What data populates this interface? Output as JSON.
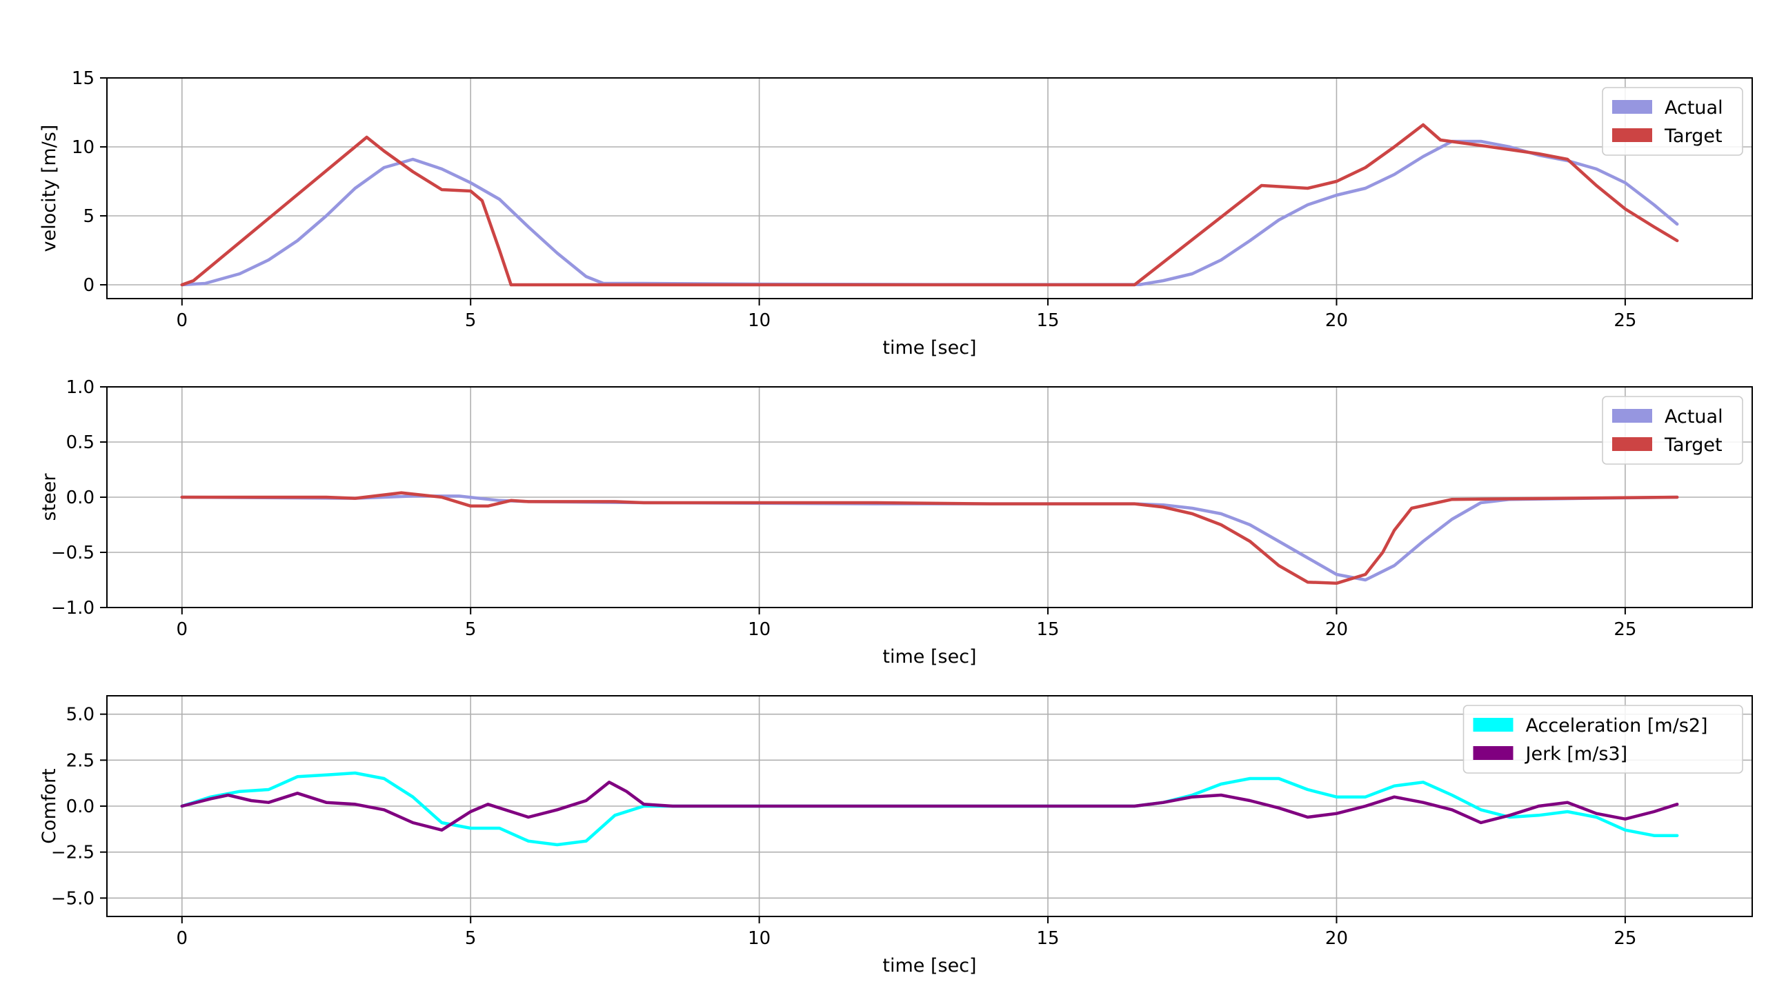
{
  "chart_data": [
    {
      "type": "line",
      "id": "velocity",
      "xlabel": "time [sec]",
      "ylabel": "velocity [m/s]",
      "xlim": [
        -1.3,
        27.2
      ],
      "ylim": [
        -1,
        15
      ],
      "xticks": [
        0,
        5,
        10,
        15,
        20,
        25
      ],
      "yticks": [
        0,
        5,
        10,
        15
      ],
      "xtick_labels": [
        "0",
        "5",
        "10",
        "15",
        "20",
        "25"
      ],
      "ytick_labels": [
        "0",
        "5",
        "10",
        "15"
      ],
      "grid": true,
      "legend_position": "top-right",
      "series": [
        {
          "name": "Actual",
          "color": "#9696e0",
          "points": [
            [
              0,
              0
            ],
            [
              0.4,
              0.1
            ],
            [
              1,
              0.8
            ],
            [
              1.5,
              1.8
            ],
            [
              2,
              3.2
            ],
            [
              2.5,
              5
            ],
            [
              3,
              7
            ],
            [
              3.5,
              8.5
            ],
            [
              4,
              9.1
            ],
            [
              4.5,
              8.4
            ],
            [
              5,
              7.4
            ],
            [
              5.5,
              6.2
            ],
            [
              6,
              4.2
            ],
            [
              6.5,
              2.3
            ],
            [
              7,
              0.6
            ],
            [
              7.3,
              0.1
            ],
            [
              8,
              0.1
            ],
            [
              10,
              0.05
            ],
            [
              13,
              0.02
            ],
            [
              16.6,
              0.02
            ],
            [
              17,
              0.3
            ],
            [
              17.5,
              0.8
            ],
            [
              18,
              1.8
            ],
            [
              18.5,
              3.2
            ],
            [
              19,
              4.7
            ],
            [
              19.5,
              5.8
            ],
            [
              20,
              6.5
            ],
            [
              20.5,
              7.0
            ],
            [
              21,
              8.0
            ],
            [
              21.5,
              9.3
            ],
            [
              22,
              10.4
            ],
            [
              22.5,
              10.4
            ],
            [
              23,
              10.0
            ],
            [
              23.5,
              9.4
            ],
            [
              24,
              9.0
            ],
            [
              24.5,
              8.4
            ],
            [
              25,
              7.4
            ],
            [
              25.5,
              5.8
            ],
            [
              25.9,
              4.4
            ]
          ]
        },
        {
          "name": "Target",
          "color": "#cc4444",
          "points": [
            [
              0,
              0
            ],
            [
              0.2,
              0.3
            ],
            [
              3.2,
              10.7
            ],
            [
              3.5,
              9.7
            ],
            [
              4,
              8.2
            ],
            [
              4.5,
              6.9
            ],
            [
              5,
              6.8
            ],
            [
              5.2,
              6.1
            ],
            [
              5.5,
              2.5
            ],
            [
              5.7,
              0
            ],
            [
              8,
              0
            ],
            [
              12,
              0
            ],
            [
              16.5,
              0
            ],
            [
              18.7,
              7.2
            ],
            [
              19.5,
              7.0
            ],
            [
              20,
              7.5
            ],
            [
              20.5,
              8.5
            ],
            [
              21,
              10.0
            ],
            [
              21.5,
              11.6
            ],
            [
              21.8,
              10.5
            ],
            [
              22.5,
              10.1
            ],
            [
              23.5,
              9.5
            ],
            [
              24,
              9.1
            ],
            [
              24.5,
              7.2
            ],
            [
              25,
              5.5
            ],
            [
              25.5,
              4.2
            ],
            [
              25.9,
              3.2
            ]
          ]
        }
      ]
    },
    {
      "type": "line",
      "id": "steer",
      "xlabel": "time [sec]",
      "ylabel": "steer",
      "xlim": [
        -1.3,
        27.2
      ],
      "ylim": [
        -1.0,
        1.0
      ],
      "xticks": [
        0,
        5,
        10,
        15,
        20,
        25
      ],
      "yticks": [
        -1.0,
        -0.5,
        0.0,
        0.5,
        1.0
      ],
      "xtick_labels": [
        "0",
        "5",
        "10",
        "15",
        "20",
        "25"
      ],
      "ytick_labels": [
        "−1.0",
        "−0.5",
        "0.0",
        "0.5",
        "1.0"
      ],
      "grid": true,
      "legend_position": "top-right",
      "series": [
        {
          "name": "Actual",
          "color": "#9696e0",
          "points": [
            [
              0,
              0
            ],
            [
              3,
              -0.01
            ],
            [
              4,
              0.01
            ],
            [
              4.8,
              0.01
            ],
            [
              5.5,
              -0.03
            ],
            [
              6,
              -0.04
            ],
            [
              8,
              -0.05
            ],
            [
              12,
              -0.06
            ],
            [
              16.5,
              -0.06
            ],
            [
              17,
              -0.07
            ],
            [
              17.5,
              -0.1
            ],
            [
              18,
              -0.15
            ],
            [
              18.5,
              -0.25
            ],
            [
              19,
              -0.4
            ],
            [
              19.5,
              -0.55
            ],
            [
              20,
              -0.7
            ],
            [
              20.5,
              -0.75
            ],
            [
              21,
              -0.62
            ],
            [
              21.5,
              -0.4
            ],
            [
              22,
              -0.2
            ],
            [
              22.5,
              -0.05
            ],
            [
              23,
              -0.02
            ],
            [
              25.9,
              0
            ]
          ]
        },
        {
          "name": "Target",
          "color": "#cc4444",
          "points": [
            [
              0,
              0
            ],
            [
              2.5,
              0
            ],
            [
              3,
              -0.01
            ],
            [
              3.8,
              0.04
            ],
            [
              4.5,
              0
            ],
            [
              5,
              -0.08
            ],
            [
              5.3,
              -0.08
            ],
            [
              5.7,
              -0.03
            ],
            [
              6,
              -0.04
            ],
            [
              7.5,
              -0.04
            ],
            [
              8,
              -0.05
            ],
            [
              12,
              -0.05
            ],
            [
              14,
              -0.06
            ],
            [
              16.5,
              -0.06
            ],
            [
              17,
              -0.09
            ],
            [
              17.5,
              -0.15
            ],
            [
              18,
              -0.25
            ],
            [
              18.5,
              -0.4
            ],
            [
              19,
              -0.62
            ],
            [
              19.5,
              -0.77
            ],
            [
              20,
              -0.78
            ],
            [
              20.5,
              -0.7
            ],
            [
              20.8,
              -0.5
            ],
            [
              21,
              -0.3
            ],
            [
              21.3,
              -0.1
            ],
            [
              22,
              -0.02
            ],
            [
              25.9,
              0
            ]
          ]
        }
      ]
    },
    {
      "type": "line",
      "id": "comfort",
      "xlabel": "time [sec]",
      "ylabel": "Comfort",
      "xlim": [
        -1.3,
        27.2
      ],
      "ylim": [
        -6,
        6
      ],
      "xticks": [
        0,
        5,
        10,
        15,
        20,
        25
      ],
      "yticks": [
        -5.0,
        -2.5,
        0.0,
        2.5,
        5.0
      ],
      "xtick_labels": [
        "0",
        "5",
        "10",
        "15",
        "20",
        "25"
      ],
      "ytick_labels": [
        "−5.0",
        "−2.5",
        "0.0",
        "2.5",
        "5.0"
      ],
      "grid": true,
      "legend_position": "top-right",
      "series": [
        {
          "name": "Acceleration [m/s2]",
          "color": "#00ffff",
          "points": [
            [
              0,
              0
            ],
            [
              0.5,
              0.5
            ],
            [
              1,
              0.8
            ],
            [
              1.5,
              0.9
            ],
            [
              2,
              1.6
            ],
            [
              2.5,
              1.7
            ],
            [
              3,
              1.8
            ],
            [
              3.5,
              1.5
            ],
            [
              4,
              0.5
            ],
            [
              4.5,
              -0.9
            ],
            [
              5,
              -1.2
            ],
            [
              5.5,
              -1.2
            ],
            [
              6,
              -1.9
            ],
            [
              6.5,
              -2.1
            ],
            [
              7,
              -1.9
            ],
            [
              7.5,
              -0.5
            ],
            [
              8,
              0
            ],
            [
              10,
              0
            ],
            [
              16.5,
              0
            ],
            [
              17,
              0.2
            ],
            [
              17.5,
              0.6
            ],
            [
              18,
              1.2
            ],
            [
              18.5,
              1.5
            ],
            [
              19,
              1.5
            ],
            [
              19.5,
              0.9
            ],
            [
              20,
              0.5
            ],
            [
              20.5,
              0.5
            ],
            [
              21,
              1.1
            ],
            [
              21.5,
              1.3
            ],
            [
              22,
              0.6
            ],
            [
              22.5,
              -0.2
            ],
            [
              23,
              -0.6
            ],
            [
              23.5,
              -0.5
            ],
            [
              24,
              -0.3
            ],
            [
              24.5,
              -0.6
            ],
            [
              25,
              -1.3
            ],
            [
              25.5,
              -1.6
            ],
            [
              25.9,
              -1.6
            ]
          ]
        },
        {
          "name": "Jerk [m/s3]",
          "color": "#800080",
          "points": [
            [
              0,
              0
            ],
            [
              0.5,
              0.4
            ],
            [
              0.8,
              0.6
            ],
            [
              1.2,
              0.3
            ],
            [
              1.5,
              0.2
            ],
            [
              2,
              0.7
            ],
            [
              2.5,
              0.2
            ],
            [
              3,
              0.1
            ],
            [
              3.5,
              -0.2
            ],
            [
              4,
              -0.9
            ],
            [
              4.5,
              -1.3
            ],
            [
              5,
              -0.3
            ],
            [
              5.3,
              0.1
            ],
            [
              5.7,
              -0.3
            ],
            [
              6,
              -0.6
            ],
            [
              6.5,
              -0.2
            ],
            [
              7,
              0.3
            ],
            [
              7.4,
              1.3
            ],
            [
              7.7,
              0.8
            ],
            [
              8,
              0.1
            ],
            [
              8.5,
              0
            ],
            [
              16.5,
              0
            ],
            [
              17,
              0.2
            ],
            [
              17.5,
              0.5
            ],
            [
              18,
              0.6
            ],
            [
              18.5,
              0.3
            ],
            [
              19,
              -0.1
            ],
            [
              19.5,
              -0.6
            ],
            [
              20,
              -0.4
            ],
            [
              20.5,
              0
            ],
            [
              21,
              0.5
            ],
            [
              21.5,
              0.2
            ],
            [
              22,
              -0.2
            ],
            [
              22.5,
              -0.9
            ],
            [
              23,
              -0.5
            ],
            [
              23.5,
              0
            ],
            [
              24,
              0.2
            ],
            [
              24.5,
              -0.4
            ],
            [
              25,
              -0.7
            ],
            [
              25.5,
              -0.3
            ],
            [
              25.9,
              0.1
            ]
          ]
        }
      ]
    }
  ]
}
